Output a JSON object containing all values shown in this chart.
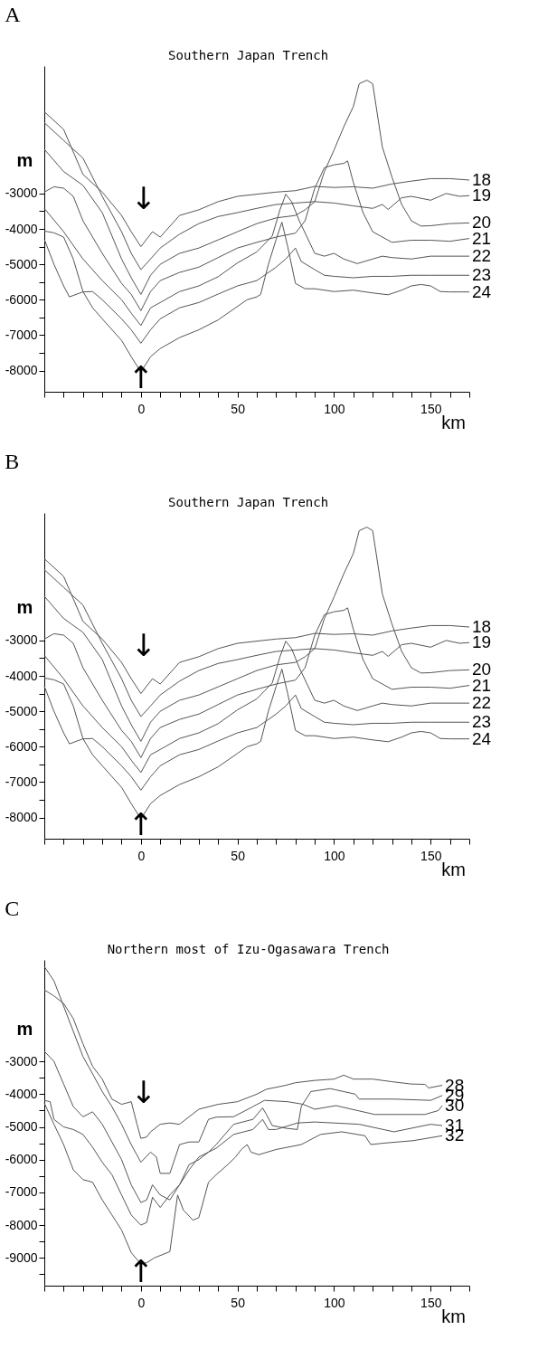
{
  "chart_data": [
    {
      "type": "line",
      "title": "A",
      "subtitle": "Southern Japan Trench",
      "xlabel": "km",
      "ylabel": "m",
      "grid": false,
      "xlim": [
        -50,
        170
      ],
      "ylim": [
        -8600,
        600
      ],
      "xticks": [
        {
          "value": -50,
          "label": null
        },
        {
          "value": -40,
          "label": null
        },
        {
          "value": -30,
          "label": null
        },
        {
          "value": -20,
          "label": null
        },
        {
          "value": -10,
          "label": null
        },
        0,
        {
          "value": 10,
          "label": null
        },
        {
          "value": 20,
          "label": null
        },
        {
          "value": 30,
          "label": null
        },
        {
          "value": 40,
          "label": null
        },
        50,
        {
          "value": 60,
          "label": null
        },
        {
          "value": 70,
          "label": null
        },
        {
          "value": 80,
          "label": null
        },
        {
          "value": 90,
          "label": null
        },
        100,
        {
          "value": 110,
          "label": null
        },
        {
          "value": 120,
          "label": null
        },
        {
          "value": 130,
          "label": null
        },
        {
          "value": 140,
          "label": null
        },
        150,
        {
          "value": 160,
          "label": null
        },
        {
          "value": 170,
          "label": null
        }
      ],
      "yticks": [
        -3000,
        {
          "value": -3500,
          "label": null
        },
        -4000,
        {
          "value": -4500,
          "label": null
        },
        -5000,
        {
          "value": -5500,
          "label": null
        },
        -6000,
        {
          "value": -6500,
          "label": null
        },
        -7000,
        {
          "value": -7500,
          "label": null
        },
        -8000
      ],
      "series": [
        {
          "name": "18",
          "color": "#555555",
          "x": [
            -50,
            -40,
            -30,
            -20,
            -10,
            -5,
            0,
            6,
            10,
            20,
            30,
            40,
            50,
            60,
            70,
            80,
            90,
            100,
            110,
            120,
            130,
            140,
            150,
            160,
            170
          ],
          "values": [
            -690,
            -1190,
            -2460,
            -2960,
            -3620,
            -4080,
            -4500,
            -4080,
            -4230,
            -3620,
            -3460,
            -3230,
            -3080,
            -3020,
            -2960,
            -2920,
            -2800,
            -2830,
            -2810,
            -2850,
            -2730,
            -2650,
            -2580,
            -2580,
            -2620
          ]
        },
        {
          "name": "19",
          "color": "#555555",
          "x": [
            -50,
            -40,
            -30,
            -20,
            -10,
            -5,
            0,
            5,
            10,
            20,
            30,
            40,
            50,
            60,
            70,
            80,
            90,
            100,
            110,
            120,
            125,
            128,
            135,
            140,
            150,
            158,
            165,
            170
          ],
          "values": [
            -1000,
            -1500,
            -2000,
            -3080,
            -4080,
            -4690,
            -5150,
            -4850,
            -4540,
            -4150,
            -3850,
            -3650,
            -3540,
            -3420,
            -3310,
            -3270,
            -3230,
            -3270,
            -3350,
            -3420,
            -3310,
            -3450,
            -3120,
            -3080,
            -3190,
            -3000,
            -3080,
            -3060
          ]
        },
        {
          "name": "20",
          "color": "#555555",
          "x": [
            -50,
            -40,
            -30,
            -20,
            -10,
            -5,
            0,
            5,
            10,
            20,
            30,
            40,
            50,
            60,
            70,
            80,
            85,
            90,
            95,
            100,
            105,
            110,
            113,
            117,
            120,
            125,
            130,
            135,
            140,
            145,
            150,
            160,
            170
          ],
          "values": [
            -1750,
            -2380,
            -2770,
            -3540,
            -4850,
            -5380,
            -5850,
            -5310,
            -5000,
            -4690,
            -4540,
            -4310,
            -4080,
            -3850,
            -3690,
            -3620,
            -3460,
            -3230,
            -2380,
            -1770,
            -1120,
            -540,
            100,
            200,
            100,
            -1690,
            -2540,
            -3310,
            -3770,
            -3920,
            -3910,
            -3850,
            -3830
          ]
        },
        {
          "name": "21",
          "color": "#555555",
          "x": [
            -50,
            -45,
            -40,
            -35,
            -30,
            -20,
            -10,
            -5,
            0,
            5,
            10,
            20,
            30,
            40,
            50,
            60,
            70,
            80,
            85,
            90,
            95,
            100,
            105,
            107,
            110,
            115,
            120,
            130,
            140,
            150,
            160,
            170
          ],
          "values": [
            -2960,
            -2810,
            -2850,
            -3080,
            -3770,
            -4690,
            -5540,
            -5850,
            -6310,
            -5770,
            -5460,
            -5230,
            -5080,
            -4810,
            -4540,
            -4380,
            -4230,
            -4120,
            -3770,
            -2850,
            -2270,
            -2190,
            -2150,
            -2080,
            -2690,
            -3540,
            -4080,
            -4380,
            -4320,
            -4320,
            -4350,
            -4270
          ]
        },
        {
          "name": "22",
          "color": "#555555",
          "x": [
            -50,
            -40,
            -30,
            -20,
            -10,
            -5,
            0,
            5,
            10,
            20,
            30,
            40,
            50,
            60,
            68,
            72,
            75,
            78,
            82,
            86,
            90,
            95,
            100,
            105,
            112,
            120,
            125,
            130,
            140,
            150,
            170
          ],
          "values": [
            -3420,
            -4080,
            -4850,
            -5460,
            -6000,
            -6380,
            -6730,
            -6230,
            -6080,
            -5770,
            -5610,
            -5350,
            -4960,
            -4650,
            -4200,
            -3460,
            -3020,
            -3230,
            -3770,
            -4230,
            -4690,
            -4770,
            -4690,
            -4850,
            -4980,
            -4850,
            -4770,
            -4810,
            -4850,
            -4770,
            -4770
          ]
        },
        {
          "name": "23",
          "color": "#555555",
          "x": [
            -50,
            -45,
            -40,
            -37,
            -30,
            -25,
            -20,
            -10,
            -5,
            0,
            5,
            10,
            20,
            30,
            40,
            50,
            60,
            70,
            75,
            80,
            83,
            90,
            95,
            100,
            110,
            120,
            130,
            140,
            150,
            170
          ],
          "values": [
            -4290,
            -5000,
            -5610,
            -5920,
            -5780,
            -5770,
            -6000,
            -6540,
            -6850,
            -7230,
            -6850,
            -6540,
            -6230,
            -6080,
            -5840,
            -5610,
            -5460,
            -5080,
            -4850,
            -4540,
            -4920,
            -5150,
            -5310,
            -5340,
            -5380,
            -5340,
            -5340,
            -5310,
            -5310,
            -5310
          ]
        },
        {
          "name": "24",
          "color": "#555555",
          "x": [
            -50,
            -45,
            -40,
            -35,
            -30,
            -25,
            -20,
            -10,
            -5,
            0,
            5,
            10,
            20,
            30,
            40,
            45,
            50,
            55,
            60,
            62,
            66,
            70,
            73,
            76,
            80,
            85,
            90,
            100,
            110,
            120,
            128,
            135,
            140,
            145,
            150,
            155,
            160,
            170
          ],
          "values": [
            -4060,
            -4110,
            -4230,
            -4850,
            -5770,
            -6230,
            -6540,
            -7150,
            -7610,
            -8040,
            -7610,
            -7380,
            -7070,
            -6850,
            -6570,
            -6380,
            -6190,
            -6000,
            -5920,
            -5850,
            -5000,
            -4300,
            -3810,
            -4500,
            -5540,
            -5690,
            -5690,
            -5770,
            -5730,
            -5810,
            -5860,
            -5730,
            -5610,
            -5570,
            -5610,
            -5770,
            -5780,
            -5780
          ]
        }
      ],
      "annotations": [
        "↓",
        "↑"
      ]
    },
    {
      "type": "line",
      "title": "B",
      "subtitle": "Southern Japan Trench",
      "xlabel": "km",
      "ylabel": "m",
      "grid": false,
      "xlim": [
        -50,
        170
      ],
      "ylim": [
        -8600,
        600
      ],
      "xticks": [
        {
          "value": -50,
          "label": null
        },
        {
          "value": -40,
          "label": null
        },
        {
          "value": -30,
          "label": null
        },
        {
          "value": -20,
          "label": null
        },
        {
          "value": -10,
          "label": null
        },
        0,
        {
          "value": 10,
          "label": null
        },
        {
          "value": 20,
          "label": null
        },
        {
          "value": 30,
          "label": null
        },
        {
          "value": 40,
          "label": null
        },
        50,
        {
          "value": 60,
          "label": null
        },
        {
          "value": 70,
          "label": null
        },
        {
          "value": 80,
          "label": null
        },
        {
          "value": 90,
          "label": null
        },
        100,
        {
          "value": 110,
          "label": null
        },
        {
          "value": 120,
          "label": null
        },
        {
          "value": 130,
          "label": null
        },
        {
          "value": 140,
          "label": null
        },
        150,
        {
          "value": 160,
          "label": null
        },
        {
          "value": 170,
          "label": null
        }
      ],
      "yticks": [
        -3000,
        {
          "value": -3500,
          "label": null
        },
        -4000,
        {
          "value": -4500,
          "label": null
        },
        -5000,
        {
          "value": -5500,
          "label": null
        },
        -6000,
        {
          "value": -6500,
          "label": null
        },
        -7000,
        {
          "value": -7500,
          "label": null
        },
        -8000
      ],
      "series": [
        {
          "name": "18",
          "color": "#555555",
          "x": [
            -50,
            -40,
            -30,
            -20,
            -10,
            -5,
            0,
            6,
            10,
            20,
            30,
            40,
            50,
            60,
            70,
            80,
            90,
            100,
            110,
            120,
            130,
            140,
            150,
            160,
            170
          ],
          "values": [
            -690,
            -1190,
            -2460,
            -2960,
            -3620,
            -4080,
            -4500,
            -4080,
            -4230,
            -3620,
            -3460,
            -3230,
            -3080,
            -3020,
            -2960,
            -2920,
            -2800,
            -2830,
            -2810,
            -2850,
            -2730,
            -2650,
            -2580,
            -2580,
            -2620
          ]
        },
        {
          "name": "19",
          "color": "#555555",
          "x": [
            -50,
            -40,
            -30,
            -20,
            -10,
            -5,
            0,
            5,
            10,
            20,
            30,
            40,
            50,
            60,
            70,
            80,
            90,
            100,
            110,
            120,
            125,
            128,
            135,
            140,
            150,
            158,
            165,
            170
          ],
          "values": [
            -1000,
            -1500,
            -2000,
            -3080,
            -4080,
            -4690,
            -5150,
            -4850,
            -4540,
            -4150,
            -3850,
            -3650,
            -3540,
            -3420,
            -3310,
            -3270,
            -3230,
            -3270,
            -3350,
            -3420,
            -3310,
            -3450,
            -3120,
            -3080,
            -3190,
            -3000,
            -3080,
            -3060
          ]
        },
        {
          "name": "20",
          "color": "#555555",
          "x": [
            -50,
            -40,
            -30,
            -20,
            -10,
            -5,
            0,
            5,
            10,
            20,
            30,
            40,
            50,
            60,
            70,
            80,
            85,
            90,
            95,
            100,
            105,
            110,
            113,
            117,
            120,
            125,
            130,
            135,
            140,
            145,
            150,
            160,
            170
          ],
          "values": [
            -1750,
            -2380,
            -2770,
            -3540,
            -4850,
            -5380,
            -5850,
            -5310,
            -5000,
            -4690,
            -4540,
            -4310,
            -4080,
            -3850,
            -3690,
            -3620,
            -3460,
            -3230,
            -2380,
            -1770,
            -1120,
            -540,
            100,
            200,
            100,
            -1690,
            -2540,
            -3310,
            -3770,
            -3920,
            -3910,
            -3850,
            -3830
          ]
        },
        {
          "name": "21",
          "color": "#555555",
          "x": [
            -50,
            -45,
            -40,
            -35,
            -30,
            -20,
            -10,
            -5,
            0,
            5,
            10,
            20,
            30,
            40,
            50,
            60,
            70,
            80,
            85,
            90,
            95,
            100,
            105,
            107,
            110,
            115,
            120,
            130,
            140,
            150,
            160,
            170
          ],
          "values": [
            -2960,
            -2810,
            -2850,
            -3080,
            -3770,
            -4690,
            -5540,
            -5850,
            -6310,
            -5770,
            -5460,
            -5230,
            -5080,
            -4810,
            -4540,
            -4380,
            -4230,
            -4120,
            -3770,
            -2850,
            -2270,
            -2190,
            -2150,
            -2080,
            -2690,
            -3540,
            -4080,
            -4380,
            -4320,
            -4320,
            -4350,
            -4270
          ]
        },
        {
          "name": "22",
          "color": "#555555",
          "x": [
            -50,
            -40,
            -30,
            -20,
            -10,
            -5,
            0,
            5,
            10,
            20,
            30,
            40,
            50,
            60,
            68,
            72,
            75,
            78,
            82,
            86,
            90,
            95,
            100,
            105,
            112,
            120,
            125,
            130,
            140,
            150,
            170
          ],
          "values": [
            -3420,
            -4080,
            -4850,
            -5460,
            -6000,
            -6380,
            -6730,
            -6230,
            -6080,
            -5770,
            -5610,
            -5350,
            -4960,
            -4650,
            -4200,
            -3460,
            -3020,
            -3230,
            -3770,
            -4230,
            -4690,
            -4770,
            -4690,
            -4850,
            -4980,
            -4850,
            -4770,
            -4810,
            -4850,
            -4770,
            -4770
          ]
        },
        {
          "name": "23",
          "color": "#555555",
          "x": [
            -50,
            -45,
            -40,
            -37,
            -30,
            -25,
            -20,
            -10,
            -5,
            0,
            5,
            10,
            20,
            30,
            40,
            50,
            60,
            70,
            75,
            80,
            83,
            90,
            95,
            100,
            110,
            120,
            130,
            140,
            150,
            170
          ],
          "values": [
            -4290,
            -5000,
            -5610,
            -5920,
            -5780,
            -5770,
            -6000,
            -6540,
            -6850,
            -7230,
            -6850,
            -6540,
            -6230,
            -6080,
            -5840,
            -5610,
            -5460,
            -5080,
            -4850,
            -4540,
            -4920,
            -5150,
            -5310,
            -5340,
            -5380,
            -5340,
            -5340,
            -5310,
            -5310,
            -5310
          ]
        },
        {
          "name": "24",
          "color": "#555555",
          "x": [
            -50,
            -45,
            -40,
            -35,
            -30,
            -25,
            -20,
            -10,
            -5,
            0,
            5,
            10,
            20,
            30,
            40,
            45,
            50,
            55,
            60,
            62,
            66,
            70,
            73,
            76,
            80,
            85,
            90,
            100,
            110,
            120,
            128,
            135,
            140,
            145,
            150,
            155,
            160,
            170
          ],
          "values": [
            -4060,
            -4110,
            -4230,
            -4850,
            -5770,
            -6230,
            -6540,
            -7150,
            -7610,
            -8040,
            -7610,
            -7380,
            -7070,
            -6850,
            -6570,
            -6380,
            -6190,
            -6000,
            -5920,
            -5850,
            -5000,
            -4300,
            -3810,
            -4500,
            -5540,
            -5690,
            -5690,
            -5770,
            -5730,
            -5810,
            -5860,
            -5730,
            -5610,
            -5570,
            -5610,
            -5770,
            -5780,
            -5780
          ]
        }
      ],
      "annotations": [
        "↓",
        "↑"
      ]
    },
    {
      "type": "line",
      "title": "C",
      "subtitle": "Northern most of Izu-Ogasawara Trench",
      "xlabel": "km",
      "ylabel": "m",
      "grid": false,
      "xlim": [
        -50,
        170
      ],
      "ylim": [
        -9850,
        100
      ],
      "xticks": [
        {
          "value": -50,
          "label": null
        },
        {
          "value": -40,
          "label": null
        },
        {
          "value": -30,
          "label": null
        },
        {
          "value": -20,
          "label": null
        },
        {
          "value": -10,
          "label": null
        },
        0,
        {
          "value": 10,
          "label": null
        },
        {
          "value": 20,
          "label": null
        },
        {
          "value": 30,
          "label": null
        },
        {
          "value": 40,
          "label": null
        },
        50,
        {
          "value": 60,
          "label": null
        },
        {
          "value": 70,
          "label": null
        },
        {
          "value": 80,
          "label": null
        },
        {
          "value": 90,
          "label": null
        },
        100,
        {
          "value": 110,
          "label": null
        },
        {
          "value": 120,
          "label": null
        },
        {
          "value": 130,
          "label": null
        },
        {
          "value": 140,
          "label": null
        },
        150,
        {
          "value": 160,
          "label": null
        },
        {
          "value": 170,
          "label": null
        }
      ],
      "yticks": [
        -3000,
        {
          "value": -3500,
          "label": null
        },
        -4000,
        {
          "value": -4500,
          "label": null
        },
        -5000,
        {
          "value": -5500,
          "label": null
        },
        -6000,
        {
          "value": -6500,
          "label": null
        },
        -7000,
        {
          "value": -7500,
          "label": null
        },
        -8000,
        {
          "value": -8500,
          "label": null
        },
        -9000,
        {
          "value": -9500,
          "label": null
        }
      ],
      "series": [
        {
          "name": "28",
          "color": "#555555",
          "x": [
            -50,
            -45,
            -40,
            -35,
            -30,
            -25,
            -20,
            -15,
            -10,
            -5,
            -2,
            0,
            3,
            5,
            10,
            15,
            20,
            30,
            40,
            50,
            60,
            65,
            75,
            80,
            90,
            100,
            105,
            110,
            120,
            130,
            140,
            147,
            149,
            156
          ],
          "values": [
            -810,
            -1000,
            -1230,
            -1690,
            -2460,
            -3150,
            -3540,
            -4150,
            -4310,
            -4230,
            -4920,
            -5350,
            -5310,
            -5150,
            -4920,
            -4880,
            -4920,
            -4460,
            -4310,
            -4230,
            -4000,
            -3850,
            -3730,
            -3650,
            -3580,
            -3540,
            -3420,
            -3540,
            -3540,
            -3620,
            -3690,
            -3700,
            -3810,
            -3730
          ]
        },
        {
          "name": "29",
          "color": "#555555",
          "x": [
            -50,
            -45,
            -40,
            -35,
            -30,
            -25,
            -20,
            -15,
            -10,
            -5,
            0,
            3,
            6,
            10,
            15,
            20,
            25,
            30,
            35,
            39,
            48,
            58,
            63,
            65,
            68,
            75,
            81,
            83,
            88,
            98,
            111,
            113,
            131,
            150,
            156
          ],
          "values": [
            -2690,
            -3000,
            -3690,
            -4380,
            -4690,
            -4540,
            -4920,
            -5460,
            -6000,
            -6770,
            -7310,
            -7230,
            -6770,
            -7080,
            -7230,
            -6770,
            -6150,
            -6000,
            -5770,
            -5540,
            -4920,
            -4770,
            -4420,
            -4620,
            -4960,
            -5040,
            -5080,
            -4380,
            -3920,
            -3830,
            -4000,
            -4150,
            -4150,
            -4190,
            -4040
          ]
        },
        {
          "name": "30",
          "color": "#555555",
          "x": [
            -50,
            -45,
            -40,
            -35,
            -30,
            -25,
            -20,
            -15,
            -10,
            -5,
            0,
            5,
            8,
            10,
            15,
            20,
            25,
            30,
            35,
            39,
            48,
            58,
            64,
            76,
            84,
            90,
            101,
            121,
            147,
            154,
            156
          ],
          "values": [
            -100,
            -540,
            -1310,
            -2080,
            -2850,
            -3380,
            -3920,
            -4380,
            -4920,
            -5540,
            -6080,
            -5770,
            -5920,
            -6420,
            -6420,
            -5540,
            -5460,
            -5460,
            -4770,
            -4700,
            -4690,
            -4380,
            -4190,
            -4230,
            -4310,
            -4460,
            -4350,
            -4620,
            -4620,
            -4500,
            -4350
          ]
        },
        {
          "name": "31",
          "color": "#555555",
          "x": [
            -50,
            -47,
            -45,
            -40,
            -35,
            -30,
            -25,
            -20,
            -15,
            -10,
            -5,
            0,
            3,
            6,
            10,
            15,
            20,
            25,
            30,
            39,
            48,
            58,
            63,
            66,
            70,
            81,
            90,
            113,
            131,
            150,
            156
          ],
          "values": [
            -4190,
            -4230,
            -4770,
            -5000,
            -5080,
            -5230,
            -5620,
            -6080,
            -6460,
            -7080,
            -7690,
            -8000,
            -7920,
            -7150,
            -7460,
            -7080,
            -6770,
            -6310,
            -5920,
            -5650,
            -5230,
            -5080,
            -4770,
            -5080,
            -5080,
            -4880,
            -4850,
            -4920,
            -5150,
            -4920,
            -4960
          ]
        },
        {
          "name": "32",
          "color": "#555555",
          "x": [
            -50,
            -45,
            -40,
            -35,
            -30,
            -25,
            -20,
            -15,
            -10,
            -5,
            0,
            3,
            7,
            15,
            19,
            22,
            27,
            30,
            35,
            39,
            45,
            49,
            52,
            55,
            57,
            61,
            70,
            83,
            93,
            104,
            116,
            119,
            125,
            141,
            156
          ],
          "values": [
            -4270,
            -4920,
            -5540,
            -6310,
            -6610,
            -6690,
            -7230,
            -7690,
            -8150,
            -8840,
            -9190,
            -9150,
            -9000,
            -8810,
            -7080,
            -7540,
            -7850,
            -7770,
            -6690,
            -6460,
            -6150,
            -5920,
            -5690,
            -5540,
            -5770,
            -5850,
            -5690,
            -5540,
            -5230,
            -5150,
            -5270,
            -5540,
            -5500,
            -5420,
            -5270
          ]
        }
      ],
      "annotations": [
        "↓",
        "↑"
      ]
    }
  ]
}
